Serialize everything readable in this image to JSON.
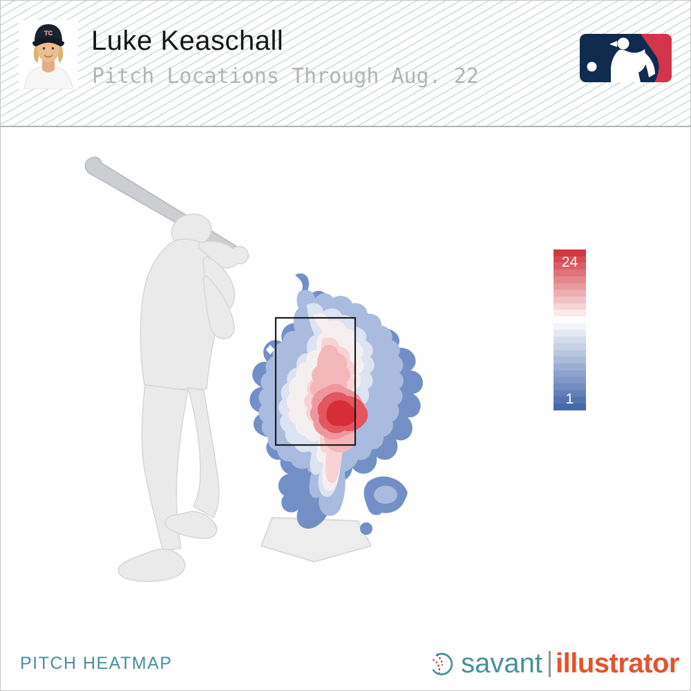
{
  "header": {
    "player_name": "Luke Keaschall",
    "subtitle": "Pitch Locations Through Aug. 22",
    "cap_monogram": "TC"
  },
  "legend": {
    "max_label": "24",
    "min_label": "1",
    "steps": 24,
    "mid_position": 0.44
  },
  "footer": {
    "label": "PITCH HEATMAP",
    "brand_left": "savant",
    "brand_divider": "|",
    "brand_right": "illustrator"
  },
  "colors": {
    "teal": "#44919d",
    "orange": "#e4532c",
    "title_text": "#161616",
    "subtitle_text": "#b4b4b4",
    "scale_top": "#d23840",
    "scale_mid": "#ffffff",
    "scale_bottom": "#4569ac",
    "mlb_blue": "#0f2b4e",
    "mlb_red": "#d2344a",
    "heat": [
      "#7390c6",
      "#a9bcdf",
      "#dce3f2",
      "#f6eff0",
      "#f7d3d5",
      "#f3b7ba",
      "#ee979e",
      "#e2565f",
      "#d52e37"
    ]
  },
  "chart_data": {
    "type": "heatmap",
    "title": "Pitch Locations Through Aug. 22",
    "subject": "Luke Keaschall",
    "footer_label": "PITCH HEATMAP",
    "colorbar": {
      "orientation": "vertical",
      "position": "right",
      "min": 1,
      "max": 24,
      "min_color": "#4569ac",
      "mid_color": "#ffffff",
      "max_color": "#d23840",
      "steps": 24
    },
    "contour_colors_out_to_in": [
      "#7390c6",
      "#a9bcdf",
      "#dce3f2",
      "#f6eff0",
      "#f7d3d5",
      "#f3b7ba",
      "#ee979e",
      "#e2565f",
      "#d52e37"
    ],
    "strike_zone_shown": true,
    "home_plate_shown": true,
    "batter_silhouette_side": "left",
    "hotspot": "Highest pitch density (about 24) low in the strike zone, slightly toward the outer edge; density fades to about 1 at the outer blue fringe well outside the zone."
  }
}
